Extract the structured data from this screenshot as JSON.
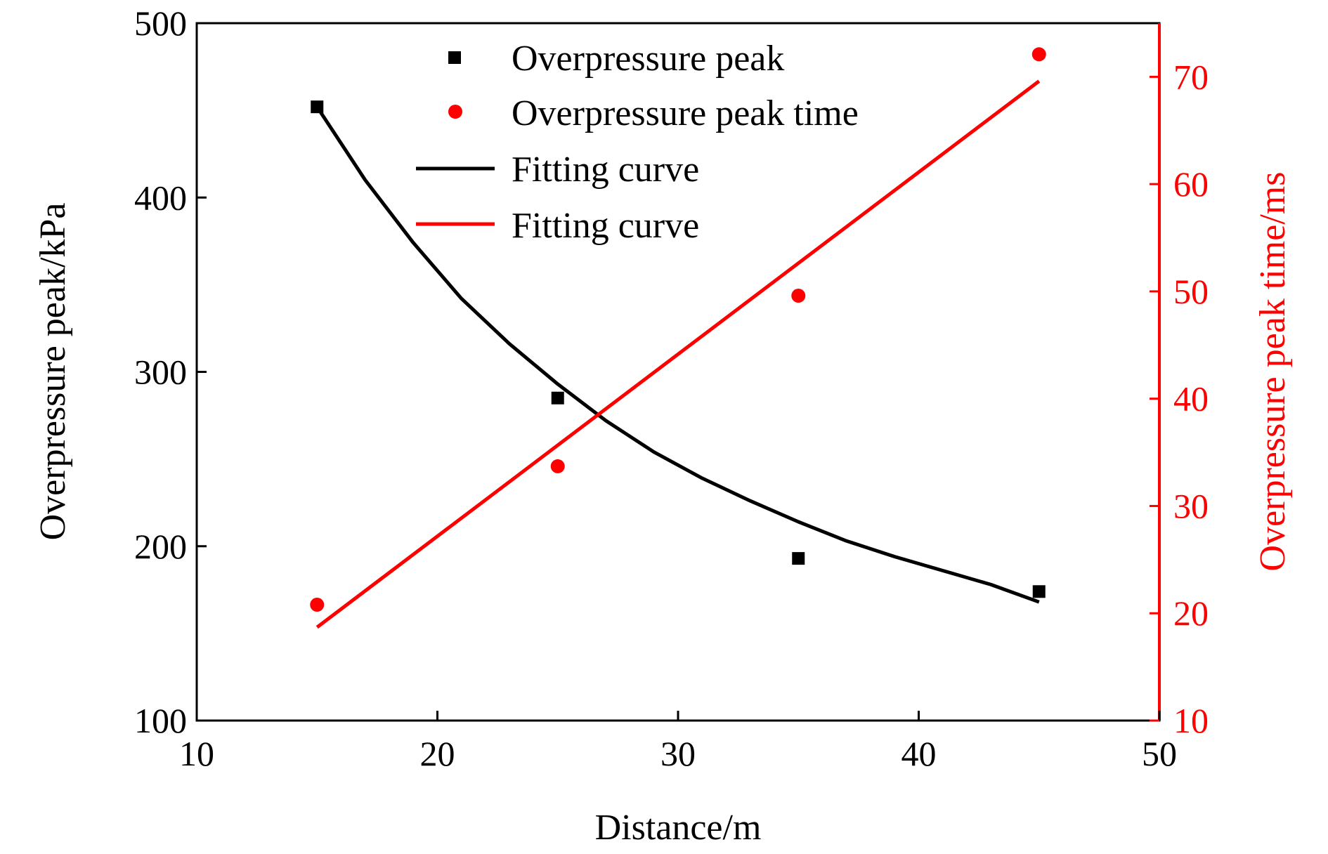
{
  "chart_data": {
    "type": "scatter",
    "title": "",
    "xlabel": "Distance/m",
    "ylabel": "Overpressure peak/kPa",
    "y2label": "Overpressure peak time/ms",
    "xlim": [
      10,
      50
    ],
    "ylim": [
      100,
      500
    ],
    "y2lim": [
      10,
      75
    ],
    "x_ticks": [
      "10",
      "20",
      "30",
      "40",
      "50"
    ],
    "y_ticks": [
      "100",
      "200",
      "300",
      "400",
      "500"
    ],
    "y2_ticks": [
      "10",
      "20",
      "30",
      "40",
      "50",
      "60",
      "70"
    ],
    "grid": false,
    "legend_position": "top-center",
    "colors": {
      "left_axis": "#000000",
      "right_axis": "#ff0000",
      "peak": "#000000",
      "time": "#ff0000"
    },
    "series": [
      {
        "name": "Overpressure peak",
        "axis": "left",
        "kind": "scatter",
        "marker": "square",
        "x": [
          15,
          25,
          35,
          45
        ],
        "y": [
          452,
          285,
          193,
          174
        ]
      },
      {
        "name": "Overpressure peak time",
        "axis": "right",
        "kind": "scatter",
        "marker": "circle",
        "x": [
          15,
          25,
          35,
          45
        ],
        "y": [
          20.8,
          33.7,
          49.6,
          72.1
        ]
      },
      {
        "name": "Fitting curve",
        "axis": "left",
        "kind": "line",
        "x": [
          15,
          17,
          19,
          21,
          23,
          25,
          27,
          29,
          31,
          33,
          35,
          37,
          39,
          41,
          43,
          45
        ],
        "y": [
          452,
          410,
          374,
          342,
          316,
          293,
          272,
          254,
          239,
          226,
          214,
          203,
          194,
          186,
          178,
          168
        ]
      },
      {
        "name": "Fitting curve",
        "axis": "right",
        "kind": "line",
        "x": [
          15,
          45
        ],
        "y": [
          18.7,
          69.6
        ]
      }
    ]
  }
}
